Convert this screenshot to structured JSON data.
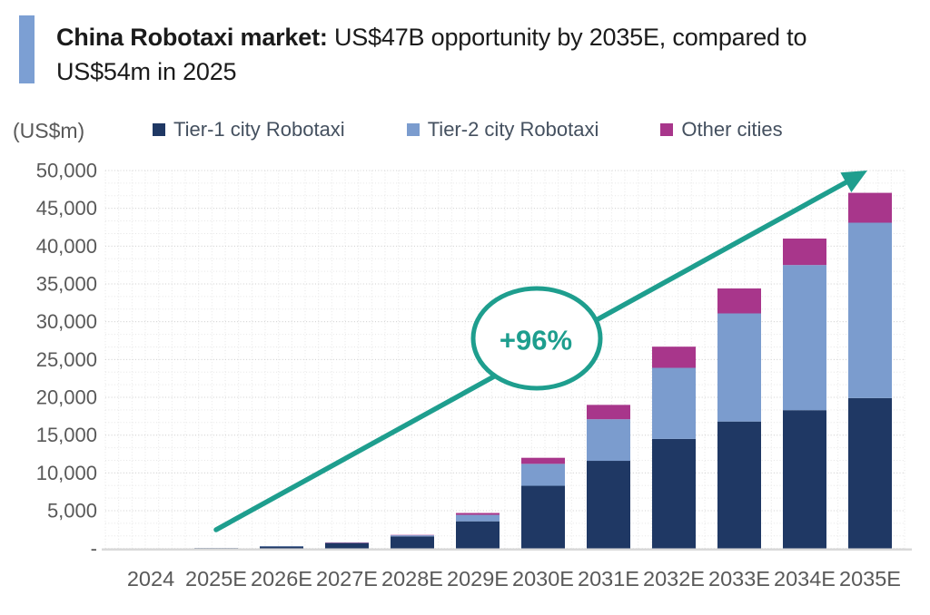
{
  "header": {
    "title_bold": "China Robotaxi market:",
    "title_line1": " US$47B opportunity by 2035E, compared to",
    "title_line2": "US$54m in 2025",
    "accent_color": "#7C9FD3"
  },
  "chart_data": {
    "type": "bar",
    "stacked": true,
    "title": "China Robotaxi market: US$47B opportunity by 2035E, compared to US$54m in 2025",
    "unit_label": "(US$m)",
    "categories": [
      "2024",
      "2025E",
      "2026E",
      "2027E",
      "2028E",
      "2029E",
      "2030E",
      "2031E",
      "2032E",
      "2033E",
      "2034E",
      "2035E"
    ],
    "series": [
      {
        "name": "Tier-1 city Robotaxi",
        "color": "#1F3864",
        "values": [
          0,
          54,
          280,
          730,
          1600,
          3600,
          8300,
          11600,
          14500,
          16800,
          18300,
          19900
        ]
      },
      {
        "name": "Tier-2 city Robotaxi",
        "color": "#7B9CCE",
        "values": [
          0,
          0,
          20,
          50,
          150,
          850,
          2900,
          5500,
          9400,
          14300,
          19200,
          23200
        ]
      },
      {
        "name": "Other cities",
        "color": "#A8368B",
        "values": [
          0,
          0,
          0,
          20,
          50,
          250,
          800,
          1900,
          2800,
          3300,
          3500,
          3950
        ]
      }
    ],
    "totals": [
      0,
      54,
      300,
      800,
      1800,
      4700,
      12000,
      19000,
      26700,
      34400,
      41000,
      47050
    ],
    "ylim": [
      0,
      50000
    ],
    "y_ticks": [
      "50,000",
      "45,000",
      "40,000",
      "35,000",
      "30,000",
      "25,000",
      "20,000",
      "15,000",
      "10,000",
      "5,000",
      "-"
    ],
    "grid": "dotted",
    "legend_position": "top",
    "annotation": {
      "label": "+96%",
      "color": "#1E9E8E",
      "note": "trend arrow from 2025E to 2035E"
    }
  }
}
